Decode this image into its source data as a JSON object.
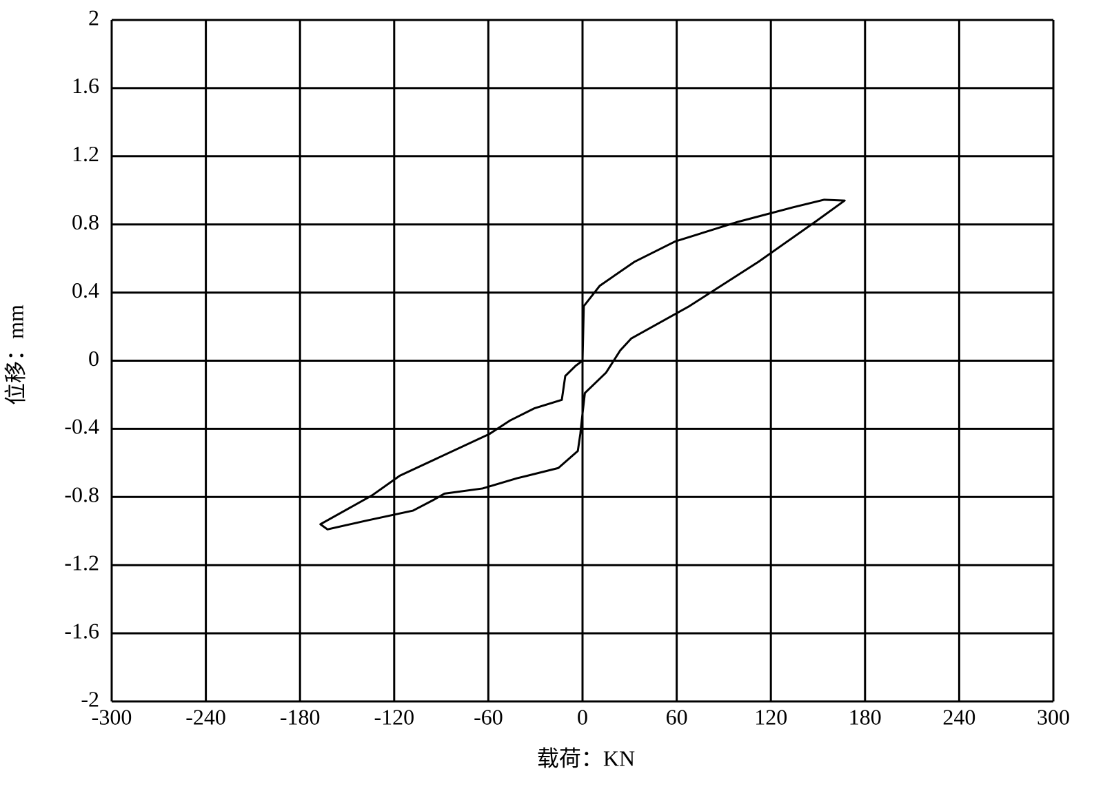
{
  "chart_data": {
    "type": "line",
    "x_label": "载荷：KN",
    "y_label": "位移：mm",
    "x": [
      0,
      0.8,
      11,
      33,
      59,
      99,
      134,
      154,
      167,
      149,
      112,
      68,
      31,
      24,
      15,
      6,
      1.5,
      0,
      -1.4,
      -3,
      -15.4,
      -41.7,
      -63.7,
      -87.9,
      -94.5,
      -108,
      -138.4,
      -162.5,
      -167,
      -134,
      -116.4,
      -59.3,
      -46,
      -30.8,
      -13.2,
      -11,
      -4.4,
      0
    ],
    "series": [
      {
        "color": "#000000",
        "values": [
          0,
          0.32,
          0.44,
          0.58,
          0.7,
          0.815,
          0.9,
          0.945,
          0.94,
          0.82,
          0.58,
          0.32,
          0.13,
          0.06,
          -0.07,
          -0.15,
          -0.19,
          -0.31,
          -0.43,
          -0.53,
          -0.63,
          -0.69,
          -0.75,
          -0.78,
          -0.815,
          -0.88,
          -0.94,
          -0.99,
          -0.96,
          -0.79,
          -0.675,
          -0.43,
          -0.35,
          -0.28,
          -0.23,
          -0.09,
          -0.03,
          0
        ]
      }
    ],
    "xlim": [
      -300,
      300
    ],
    "xticks": [
      -300,
      -240,
      -180,
      -120,
      -60,
      0,
      60,
      120,
      180,
      240,
      300
    ],
    "ylim": [
      -2,
      2
    ],
    "yticks": [
      -2,
      -1.6,
      -1.2,
      -0.8,
      -0.4,
      0,
      0.4,
      0.8,
      1.2,
      1.6,
      2
    ],
    "grid": true
  }
}
